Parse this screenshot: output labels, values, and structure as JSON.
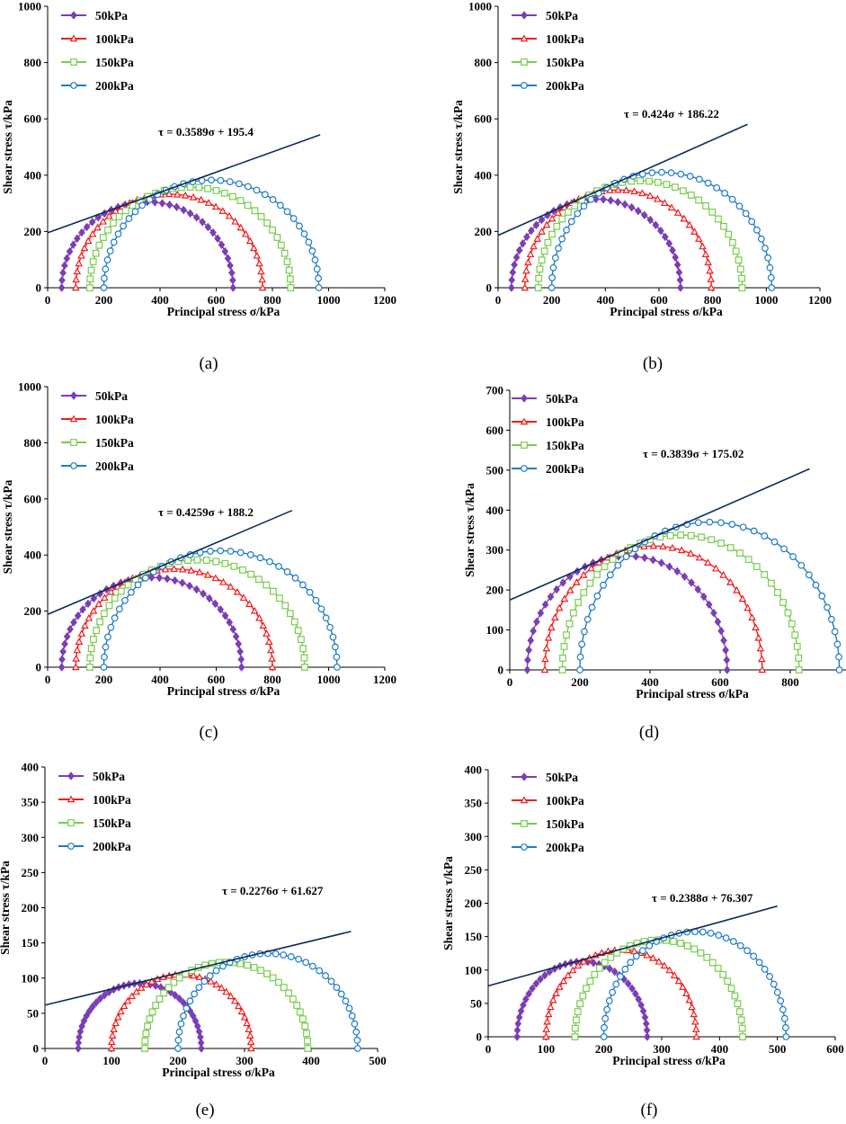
{
  "colors": {
    "s50": "#7B3FB5",
    "s100": "#F01E1E",
    "s150": "#7ACC50",
    "s200": "#1E7BC8",
    "fit_line": "#0D2B5A",
    "axis": "#000000"
  },
  "chart_data": [
    {
      "type": "line",
      "caption": "(a)",
      "xlabel": "Principal stress σ/kPa",
      "ylabel": "Shear stress τ/kPa",
      "xlim": [
        0,
        1200
      ],
      "xticks": [
        0,
        200,
        400,
        600,
        800,
        1000,
        1200
      ],
      "ylim": [
        0,
        1000
      ],
      "yticks": [
        0,
        200,
        400,
        600,
        800,
        1000
      ],
      "equation": "τ = 0.3589σ + 195.4",
      "fit": {
        "slope": 0.3589,
        "intercept": 195.4,
        "x_end": 970
      },
      "series": [
        {
          "name": "50kPa",
          "sigma3": 50,
          "sigma1": 660
        },
        {
          "name": "100kPa",
          "sigma3": 100,
          "sigma1": 765
        },
        {
          "name": "150kPa",
          "sigma3": 150,
          "sigma1": 865
        },
        {
          "name": "200kPa",
          "sigma3": 200,
          "sigma1": 965
        }
      ]
    },
    {
      "type": "line",
      "caption": "(b)",
      "xlabel": "Principal stress σ/kPa",
      "ylabel": "Shear stress τ/kPa",
      "xlim": [
        0,
        1200
      ],
      "xticks": [
        0,
        200,
        400,
        600,
        800,
        1000,
        1200
      ],
      "ylim": [
        0,
        1000
      ],
      "yticks": [
        0,
        200,
        400,
        600,
        800,
        1000
      ],
      "equation": "τ = 0.424σ + 186.22",
      "fit": {
        "slope": 0.424,
        "intercept": 186.22,
        "x_end": 930
      },
      "series": [
        {
          "name": "50kPa",
          "sigma3": 50,
          "sigma1": 680
        },
        {
          "name": "100kPa",
          "sigma3": 100,
          "sigma1": 795
        },
        {
          "name": "150kPa",
          "sigma3": 150,
          "sigma1": 910
        },
        {
          "name": "200kPa",
          "sigma3": 200,
          "sigma1": 1020
        }
      ]
    },
    {
      "type": "line",
      "caption": "(c)",
      "xlabel": "Principal stress σ/kPa",
      "ylabel": "Shear stress τ/kPa",
      "xlim": [
        0,
        1200
      ],
      "xticks": [
        0,
        200,
        400,
        600,
        800,
        1000,
        1200
      ],
      "ylim": [
        0,
        1000
      ],
      "yticks": [
        0,
        200,
        400,
        600,
        800,
        1000
      ],
      "equation": "τ = 0.4259σ + 188.2",
      "fit": {
        "slope": 0.4259,
        "intercept": 188.2,
        "x_end": 870
      },
      "series": [
        {
          "name": "50kPa",
          "sigma3": 50,
          "sigma1": 690
        },
        {
          "name": "100kPa",
          "sigma3": 100,
          "sigma1": 800
        },
        {
          "name": "150kPa",
          "sigma3": 150,
          "sigma1": 915
        },
        {
          "name": "200kPa",
          "sigma3": 200,
          "sigma1": 1030
        }
      ]
    },
    {
      "type": "line",
      "caption": "(d)",
      "xlabel": "Principal stress σ/kPa",
      "ylabel": "Shear stress τ/kPa",
      "xlim": [
        0,
        1000
      ],
      "xticks": [
        0,
        200,
        400,
        600,
        800,
        1000
      ],
      "ylim": [
        0,
        700
      ],
      "yticks": [
        0,
        100,
        200,
        300,
        400,
        500,
        600,
        700
      ],
      "equation": "τ = 0.3839σ + 175.02",
      "fit": {
        "slope": 0.3839,
        "intercept": 175.02,
        "x_end": 855
      },
      "series": [
        {
          "name": "50kPa",
          "sigma3": 50,
          "sigma1": 620
        },
        {
          "name": "100kPa",
          "sigma3": 100,
          "sigma1": 720
        },
        {
          "name": "150kPa",
          "sigma3": 150,
          "sigma1": 825
        },
        {
          "name": "200kPa",
          "sigma3": 200,
          "sigma1": 940
        }
      ]
    },
    {
      "type": "line",
      "caption": "(e)",
      "xlabel": "Principal stress σ/kPa",
      "ylabel": "Shear stress τ/kPa",
      "xlim": [
        0,
        500
      ],
      "xticks": [
        0,
        100,
        200,
        300,
        400,
        500
      ],
      "ylim": [
        0,
        400
      ],
      "yticks": [
        0,
        50,
        100,
        150,
        200,
        250,
        300,
        350,
        400
      ],
      "equation": "τ = 0.2276σ + 61.627",
      "fit": {
        "slope": 0.2276,
        "intercept": 61.627,
        "x_end": 460
      },
      "series": [
        {
          "name": "50kPa",
          "sigma3": 50,
          "sigma1": 235
        },
        {
          "name": "100kPa",
          "sigma3": 100,
          "sigma1": 310
        },
        {
          "name": "150kPa",
          "sigma3": 150,
          "sigma1": 395
        },
        {
          "name": "200kPa",
          "sigma3": 200,
          "sigma1": 470
        }
      ]
    },
    {
      "type": "line",
      "caption": "(f)",
      "xlabel": "Principal stress σ/kPa",
      "ylabel": "Shear stress τ/kPa",
      "xlim": [
        0,
        600
      ],
      "xticks": [
        0,
        100,
        200,
        300,
        400,
        500,
        600
      ],
      "ylim": [
        0,
        400
      ],
      "yticks": [
        0,
        50,
        100,
        150,
        200,
        250,
        300,
        350,
        400
      ],
      "equation": "τ = 0.2388σ + 76.307",
      "fit": {
        "slope": 0.2388,
        "intercept": 76.307,
        "x_end": 500
      },
      "series": [
        {
          "name": "50kPa",
          "sigma3": 50,
          "sigma1": 275
        },
        {
          "name": "100kPa",
          "sigma3": 100,
          "sigma1": 360
        },
        {
          "name": "150kPa",
          "sigma3": 150,
          "sigma1": 440
        },
        {
          "name": "200kPa",
          "sigma3": 200,
          "sigma1": 515
        }
      ]
    }
  ]
}
